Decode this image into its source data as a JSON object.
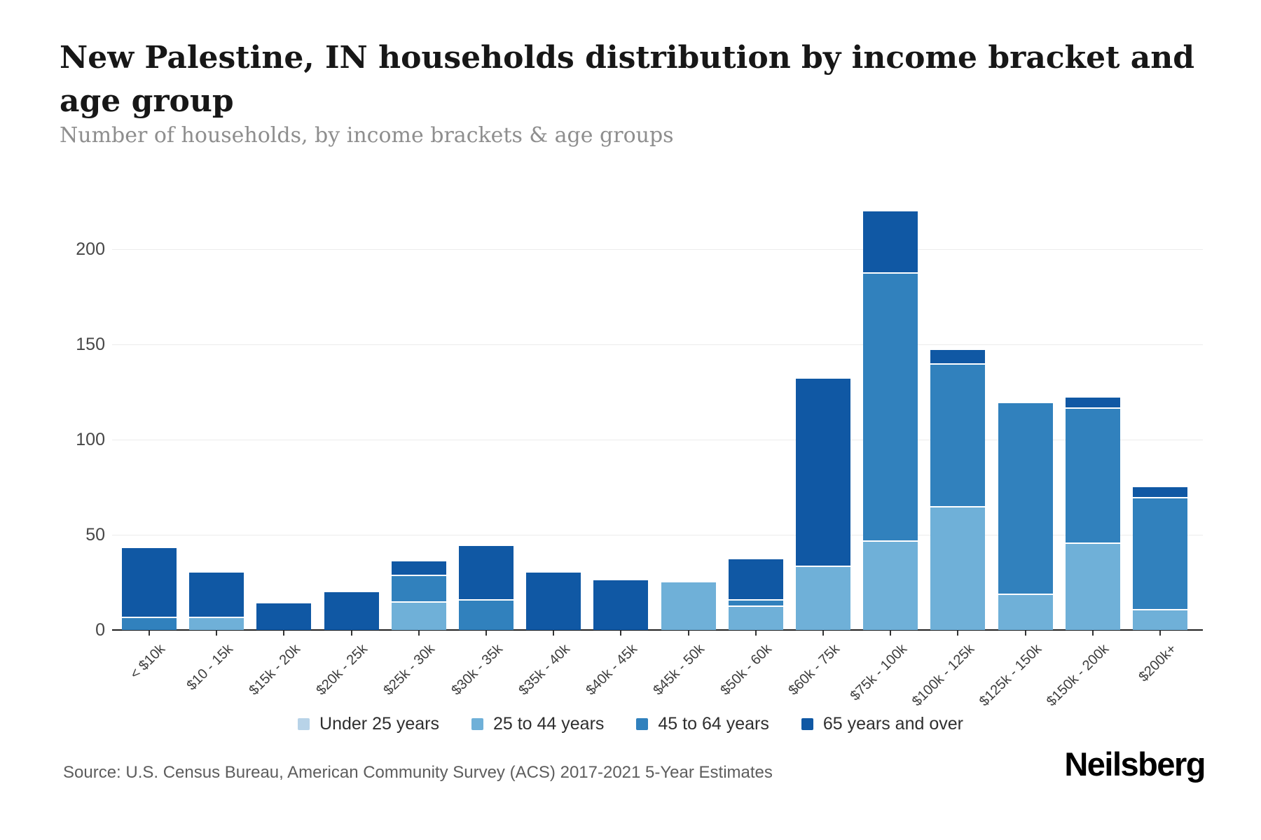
{
  "header": {
    "title_lines": [
      "New Palestine, IN households distribution by income bracket and",
      "age group"
    ],
    "subtitle": "Number of households, by income brackets & age groups"
  },
  "chart_data": {
    "type": "bar",
    "stacked": true,
    "title": "New Palestine, IN households distribution by income bracket and age group",
    "xlabel": "",
    "ylabel": "Number of households",
    "ylim": [
      0,
      225
    ],
    "yticks": [
      0,
      50,
      100,
      150,
      200
    ],
    "grid": true,
    "legend_position": "bottom",
    "categories": [
      "< $10k",
      "$10 - 15k",
      "$15k - 20k",
      "$20k - 25k",
      "$25k - 30k",
      "$30k - 35k",
      "$35k - 40k",
      "$40k - 45k",
      "$45k - 50k",
      "$50k - 60k",
      "$60k - 75k",
      "$75k - 100k",
      "$100k - 125k",
      "$125k - 150k",
      "$150k - 200k",
      "$200k+"
    ],
    "series": [
      {
        "name": "Under 25 years",
        "color": "#b8d3e8",
        "values": [
          0,
          0,
          0,
          0,
          0,
          0,
          0,
          0,
          0,
          0,
          0,
          0,
          0,
          0,
          0,
          0
        ]
      },
      {
        "name": "25 to 44 years",
        "color": "#6fb0d8",
        "values": [
          0,
          7,
          0,
          0,
          15,
          0,
          0,
          0,
          25,
          13,
          34,
          47,
          65,
          19,
          46,
          11
        ]
      },
      {
        "name": "45 to 64 years",
        "color": "#3181bd",
        "values": [
          7,
          0,
          0,
          0,
          14,
          16,
          0,
          0,
          0,
          3,
          0,
          141,
          75,
          100,
          71,
          59
        ]
      },
      {
        "name": "65 years and over",
        "color": "#1058a4",
        "values": [
          36,
          23,
          14,
          20,
          7,
          28,
          30,
          26,
          0,
          21,
          98,
          32,
          7,
          0,
          5,
          5
        ]
      }
    ],
    "totals": [
      43,
      30,
      14,
      20,
      36,
      44,
      30,
      26,
      25,
      37,
      132,
      220,
      147,
      119,
      122,
      75
    ]
  },
  "footer": {
    "source": "Source: U.S. Census Bureau, American Community Survey (ACS) 2017-2021 5-Year Estimates",
    "brand": "Neilsberg"
  }
}
